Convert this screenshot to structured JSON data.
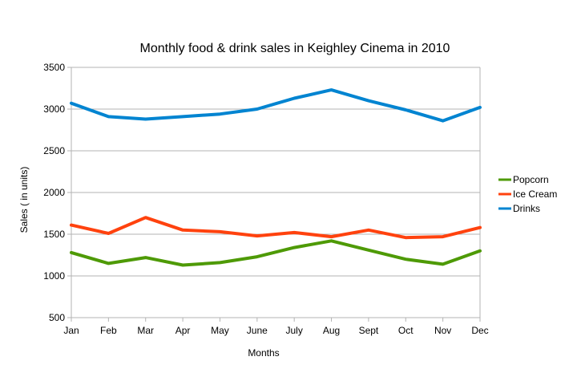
{
  "chart_data": {
    "type": "line",
    "title": "Monthly food & drink sales in Keighley Cinema in 2010",
    "xlabel": "Months",
    "ylabel": "Sales ( in units)",
    "ylim": [
      500,
      3500
    ],
    "y_ticks": [
      500,
      1000,
      1500,
      2000,
      2500,
      3000,
      3500
    ],
    "grid": "horizontal",
    "legend_position": "right",
    "categories": [
      "Jan",
      "Feb",
      "Mar",
      "Apr",
      "May",
      "June",
      "July",
      "Aug",
      "Sept",
      "Oct",
      "Nov",
      "Dec"
    ],
    "series": [
      {
        "name": "Popcorn",
        "color": "#4e9a06",
        "values": [
          1280,
          1150,
          1220,
          1130,
          1160,
          1230,
          1340,
          1420,
          1310,
          1200,
          1140,
          1300
        ]
      },
      {
        "name": "Ice Cream",
        "color": "#ff420e",
        "values": [
          1610,
          1510,
          1700,
          1550,
          1530,
          1480,
          1520,
          1470,
          1550,
          1460,
          1470,
          1580
        ]
      },
      {
        "name": "Drinks",
        "color": "#0084d1",
        "values": [
          3070,
          2910,
          2880,
          2910,
          2940,
          3000,
          3130,
          3230,
          3100,
          2990,
          2860,
          3020
        ]
      }
    ]
  }
}
